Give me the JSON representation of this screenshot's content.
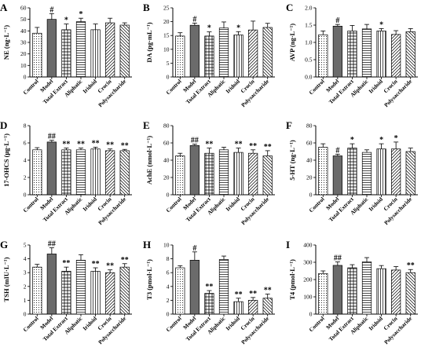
{
  "categories": [
    "Control",
    "Model",
    "Total Extract",
    "Aliphatic",
    "Iridoid",
    "Crocin",
    "Polysaccharide"
  ],
  "styles": {
    "bar_fill": [
      "#ffffff",
      "#6b6b6b",
      "#ffffff",
      "#ffffff",
      "#ffffff",
      "#ffffff",
      "#ffffff"
    ],
    "patterns": [
      "dots",
      "solid",
      "hvert",
      "hstripe",
      "vstripe",
      "diag",
      "vstripe2"
    ],
    "stroke": "#000000"
  },
  "chart_data": [
    {
      "panel": "A",
      "type": "bar",
      "ylabel": "NE (ng·L⁻¹)",
      "ylim": [
        0,
        60
      ],
      "yticks": [
        "0",
        "10",
        "20",
        "30",
        "40",
        "50",
        "60"
      ],
      "values": [
        38,
        50,
        41,
        48,
        41,
        47,
        45
      ],
      "errors": [
        5,
        5,
        5,
        3,
        5,
        4,
        2
      ],
      "significance": [
        "",
        "#",
        "*",
        "*",
        "",
        "",
        ""
      ]
    },
    {
      "panel": "B",
      "type": "bar",
      "ylabel": "DA (pg·mL⁻¹)",
      "ylim": [
        0,
        25
      ],
      "yticks": [
        "0",
        "5",
        "10",
        "15",
        "20",
        "25"
      ],
      "values": [
        14.8,
        18.7,
        14.8,
        17.7,
        15.2,
        17.0,
        17.9
      ],
      "errors": [
        1.2,
        0.8,
        1.5,
        2.2,
        1.2,
        3.2,
        1.5
      ],
      "significance": [
        "",
        "#",
        "*",
        "",
        "*",
        "",
        ""
      ]
    },
    {
      "panel": "C",
      "type": "bar",
      "ylabel": "AVP (ng·L⁻¹)",
      "ylim": [
        0.0,
        2.0
      ],
      "yticks": [
        "0.0",
        "0.5",
        "1.0",
        "1.5",
        "2.0"
      ],
      "values": [
        1.22,
        1.47,
        1.33,
        1.39,
        1.33,
        1.23,
        1.31
      ],
      "errors": [
        0.11,
        0.05,
        0.16,
        0.13,
        0.07,
        0.11,
        0.09
      ],
      "significance": [
        "",
        "#",
        "",
        "",
        "*",
        "",
        ""
      ]
    },
    {
      "panel": "D",
      "type": "bar",
      "ylabel": "17-OHCS (μg·L⁻¹)",
      "ylim": [
        0,
        8
      ],
      "yticks": [
        "0",
        "2",
        "4",
        "6",
        "8"
      ],
      "values": [
        5.2,
        6.1,
        5.2,
        5.2,
        5.3,
        5.1,
        5.1
      ],
      "errors": [
        0.25,
        0.2,
        0.2,
        0.2,
        0.2,
        0.2,
        0.15
      ],
      "significance": [
        "",
        "##",
        "**",
        "**",
        "**",
        "**",
        "**"
      ]
    },
    {
      "panel": "E",
      "type": "bar",
      "ylabel": "AchE (nmol·L⁻¹)",
      "ylim": [
        0,
        80
      ],
      "yticks": [
        "0",
        "20",
        "40",
        "60",
        "80"
      ],
      "values": [
        45,
        57,
        48,
        52,
        49,
        48,
        45
      ],
      "errors": [
        3,
        1.5,
        6,
        3,
        5,
        4,
        6
      ],
      "significance": [
        "",
        "##",
        "**",
        "",
        "**",
        "**",
        "**"
      ]
    },
    {
      "panel": "F",
      "type": "bar",
      "ylabel": "5-HT (ng·L⁻¹)",
      "ylim": [
        0,
        80
      ],
      "yticks": [
        "0",
        "20",
        "40",
        "60",
        "80"
      ],
      "values": [
        55,
        45,
        54,
        49,
        53,
        53,
        50
      ],
      "errors": [
        4,
        2,
        5,
        3,
        6,
        8,
        4
      ],
      "significance": [
        "",
        "#",
        "*",
        "",
        "*",
        "*",
        ""
      ]
    },
    {
      "panel": "G",
      "type": "bar",
      "ylabel": "TSH (mIU·L⁻¹)",
      "ylim": [
        0,
        5
      ],
      "yticks": [
        "0",
        "1",
        "2",
        "3",
        "4",
        "5"
      ],
      "values": [
        3.4,
        4.35,
        3.1,
        3.9,
        3.1,
        3.0,
        3.4
      ],
      "errors": [
        0.2,
        0.45,
        0.3,
        0.4,
        0.25,
        0.2,
        0.25
      ],
      "significance": [
        "",
        "##",
        "**",
        "",
        "**",
        "**",
        "**"
      ]
    },
    {
      "panel": "H",
      "type": "bar",
      "ylabel": "T3 (pmol·L⁻¹)",
      "ylim": [
        0,
        10
      ],
      "yticks": [
        "0",
        "2",
        "4",
        "6",
        "8",
        "10"
      ],
      "values": [
        6.7,
        7.8,
        3.0,
        7.9,
        1.8,
        2.0,
        2.3
      ],
      "errors": [
        0.3,
        1.2,
        0.4,
        0.5,
        0.5,
        0.4,
        0.6
      ],
      "significance": [
        "",
        "#",
        "**",
        "",
        "**",
        "**",
        "**"
      ]
    },
    {
      "panel": "I",
      "type": "bar",
      "ylabel": "T4 (pmol·L⁻¹)",
      "ylim": [
        0,
        400
      ],
      "yticks": [
        "0",
        "100",
        "200",
        "300",
        "400"
      ],
      "values": [
        235,
        282,
        268,
        302,
        263,
        255,
        240
      ],
      "errors": [
        15,
        20,
        18,
        25,
        18,
        20,
        18
      ],
      "significance": [
        "",
        "##",
        "",
        "",
        "",
        "",
        "**"
      ]
    }
  ]
}
